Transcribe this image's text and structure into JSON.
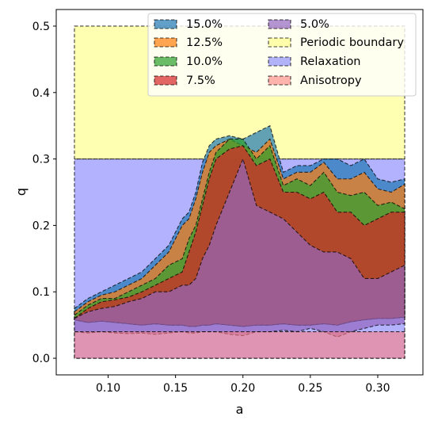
{
  "chart_data": {
    "type": "area",
    "xlabel": "a",
    "ylabel": "q",
    "xlim": [
      0.0615,
      0.3335
    ],
    "ylim": [
      -0.025,
      0.525
    ],
    "xticks": [
      0.1,
      0.15,
      0.2,
      0.25,
      0.3
    ],
    "yticks": [
      0.0,
      0.1,
      0.2,
      0.3,
      0.4,
      0.5
    ],
    "xtick_labels": [
      "0.10",
      "0.15",
      "0.20",
      "0.25",
      "0.30"
    ],
    "ytick_labels": [
      "0.0",
      "0.1",
      "0.2",
      "0.3",
      "0.4",
      "0.5"
    ],
    "legend_position": "top-right",
    "regions": [
      {
        "name": "Periodic boundary",
        "color": "#ffff66",
        "x": [
          0.075,
          0.32
        ],
        "y": [
          0.3,
          0.5
        ]
      },
      {
        "name": "Relaxation",
        "color": "#6666ff",
        "x": [
          0.075,
          0.32
        ],
        "y": [
          0.0,
          0.3
        ]
      },
      {
        "name": "Anisotropy",
        "color": "#ff8080",
        "x": [
          0.075,
          0.32
        ],
        "y": [
          0.0,
          0.04
        ]
      }
    ],
    "series": [
      {
        "name": "15.0%",
        "color": "#1f77b4",
        "x": [
          0.075,
          0.085,
          0.095,
          0.105,
          0.115,
          0.125,
          0.135,
          0.145,
          0.155,
          0.16,
          0.165,
          0.17,
          0.175,
          0.18,
          0.19,
          0.2,
          0.21,
          0.22,
          0.23,
          0.24,
          0.25,
          0.26,
          0.27,
          0.28,
          0.29,
          0.3,
          0.31,
          0.32
        ],
        "upper": [
          0.075,
          0.09,
          0.1,
          0.11,
          0.12,
          0.13,
          0.15,
          0.17,
          0.21,
          0.22,
          0.25,
          0.295,
          0.32,
          0.33,
          0.335,
          0.33,
          0.34,
          0.35,
          0.28,
          0.29,
          0.29,
          0.3,
          0.3,
          0.29,
          0.3,
          0.27,
          0.265,
          0.27
        ],
        "lower": [
          0.058,
          0.054,
          0.056,
          0.054,
          0.052,
          0.05,
          0.052,
          0.05,
          0.05,
          0.048,
          0.048,
          0.05,
          0.05,
          0.052,
          0.05,
          0.048,
          0.05,
          0.05,
          0.052,
          0.05,
          0.05,
          0.052,
          0.05,
          0.055,
          0.058,
          0.06,
          0.06,
          0.062
        ]
      },
      {
        "name": "12.5%",
        "color": "#ff7f0e",
        "x": [
          0.075,
          0.085,
          0.095,
          0.105,
          0.115,
          0.125,
          0.135,
          0.145,
          0.155,
          0.16,
          0.165,
          0.17,
          0.175,
          0.18,
          0.19,
          0.2,
          0.21,
          0.22,
          0.23,
          0.24,
          0.25,
          0.26,
          0.27,
          0.28,
          0.29,
          0.3,
          0.31,
          0.32
        ],
        "upper": [
          0.07,
          0.085,
          0.095,
          0.1,
          0.11,
          0.12,
          0.14,
          0.16,
          0.2,
          0.21,
          0.24,
          0.28,
          0.31,
          0.32,
          0.33,
          0.32,
          0.31,
          0.33,
          0.27,
          0.28,
          0.28,
          0.295,
          0.27,
          0.27,
          0.28,
          0.255,
          0.25,
          0.262
        ]
      },
      {
        "name": "10.0%",
        "color": "#2ca02c",
        "x": [
          0.075,
          0.085,
          0.095,
          0.105,
          0.115,
          0.125,
          0.135,
          0.145,
          0.155,
          0.16,
          0.165,
          0.17,
          0.175,
          0.18,
          0.19,
          0.2,
          0.21,
          0.22,
          0.23,
          0.24,
          0.25,
          0.26,
          0.27,
          0.28,
          0.29,
          0.3,
          0.31,
          0.32
        ],
        "upper": [
          0.065,
          0.08,
          0.09,
          0.09,
          0.1,
          0.11,
          0.12,
          0.14,
          0.15,
          0.18,
          0.2,
          0.24,
          0.28,
          0.31,
          0.33,
          0.33,
          0.3,
          0.32,
          0.26,
          0.27,
          0.26,
          0.28,
          0.25,
          0.245,
          0.25,
          0.23,
          0.235,
          0.225
        ]
      },
      {
        "name": "7.5%",
        "color": "#d62728",
        "x": [
          0.075,
          0.085,
          0.095,
          0.105,
          0.115,
          0.125,
          0.135,
          0.145,
          0.155,
          0.16,
          0.165,
          0.17,
          0.175,
          0.18,
          0.19,
          0.2,
          0.21,
          0.22,
          0.23,
          0.24,
          0.25,
          0.26,
          0.27,
          0.28,
          0.29,
          0.3,
          0.31,
          0.32
        ],
        "upper": [
          0.06,
          0.075,
          0.085,
          0.088,
          0.092,
          0.1,
          0.11,
          0.12,
          0.13,
          0.16,
          0.19,
          0.23,
          0.27,
          0.3,
          0.315,
          0.32,
          0.29,
          0.3,
          0.25,
          0.25,
          0.24,
          0.25,
          0.22,
          0.22,
          0.2,
          0.21,
          0.22,
          0.22
        ]
      },
      {
        "name": "5.0%",
        "color": "#9467bd",
        "x": [
          0.075,
          0.085,
          0.095,
          0.105,
          0.115,
          0.125,
          0.135,
          0.145,
          0.155,
          0.16,
          0.165,
          0.17,
          0.175,
          0.18,
          0.19,
          0.2,
          0.21,
          0.22,
          0.23,
          0.24,
          0.25,
          0.26,
          0.27,
          0.28,
          0.29,
          0.3,
          0.31,
          0.32
        ],
        "upper": [
          0.06,
          0.07,
          0.075,
          0.078,
          0.085,
          0.09,
          0.1,
          0.1,
          0.11,
          0.11,
          0.12,
          0.15,
          0.17,
          0.2,
          0.25,
          0.3,
          0.23,
          0.22,
          0.21,
          0.19,
          0.17,
          0.16,
          0.16,
          0.15,
          0.12,
          0.12,
          0.13,
          0.14
        ],
        "lower": [
          0.04,
          0.038,
          0.04,
          0.038,
          0.037,
          0.038,
          0.036,
          0.038,
          0.04,
          0.038,
          0.038,
          0.04,
          0.04,
          0.04,
          0.036,
          0.034,
          0.04,
          0.04,
          0.042,
          0.04,
          0.045,
          0.04,
          0.032,
          0.04,
          0.045,
          0.05,
          0.05,
          0.052
        ]
      }
    ],
    "legend": {
      "columns": [
        [
          "15.0%",
          "12.5%",
          "10.0%",
          "7.5%"
        ],
        [
          "5.0%",
          "Periodic boundary",
          "Relaxation",
          "Anisotropy"
        ]
      ]
    }
  }
}
